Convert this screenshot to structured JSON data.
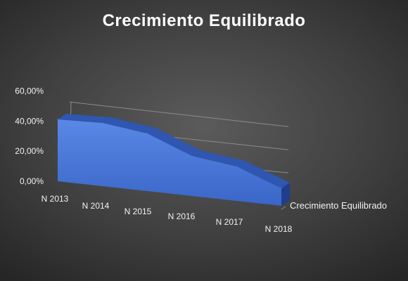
{
  "chart_data": {
    "type": "area",
    "title": "Crecimiento Equilibrado",
    "categories": [
      "N 2013",
      "N 2014",
      "N 2015",
      "N 2016",
      "N 2017",
      "N 2018"
    ],
    "series": [
      {
        "name": "Crecimiento Equilibrado",
        "values": [
          0.44,
          0.45,
          0.41,
          0.285,
          0.245,
          0.125
        ]
      }
    ],
    "y_ticks": [
      "0,00%",
      "20,00%",
      "40,00%",
      "60,00%"
    ],
    "ylim": [
      0,
      0.6
    ],
    "grid": true,
    "view": "3d-perspective",
    "colors": {
      "area_front": "#4a78d8",
      "area_top": "#2f56b0",
      "area_side": "#1f3f8c",
      "grid": "#8c8c8c",
      "text": "#f2f2f2"
    }
  }
}
